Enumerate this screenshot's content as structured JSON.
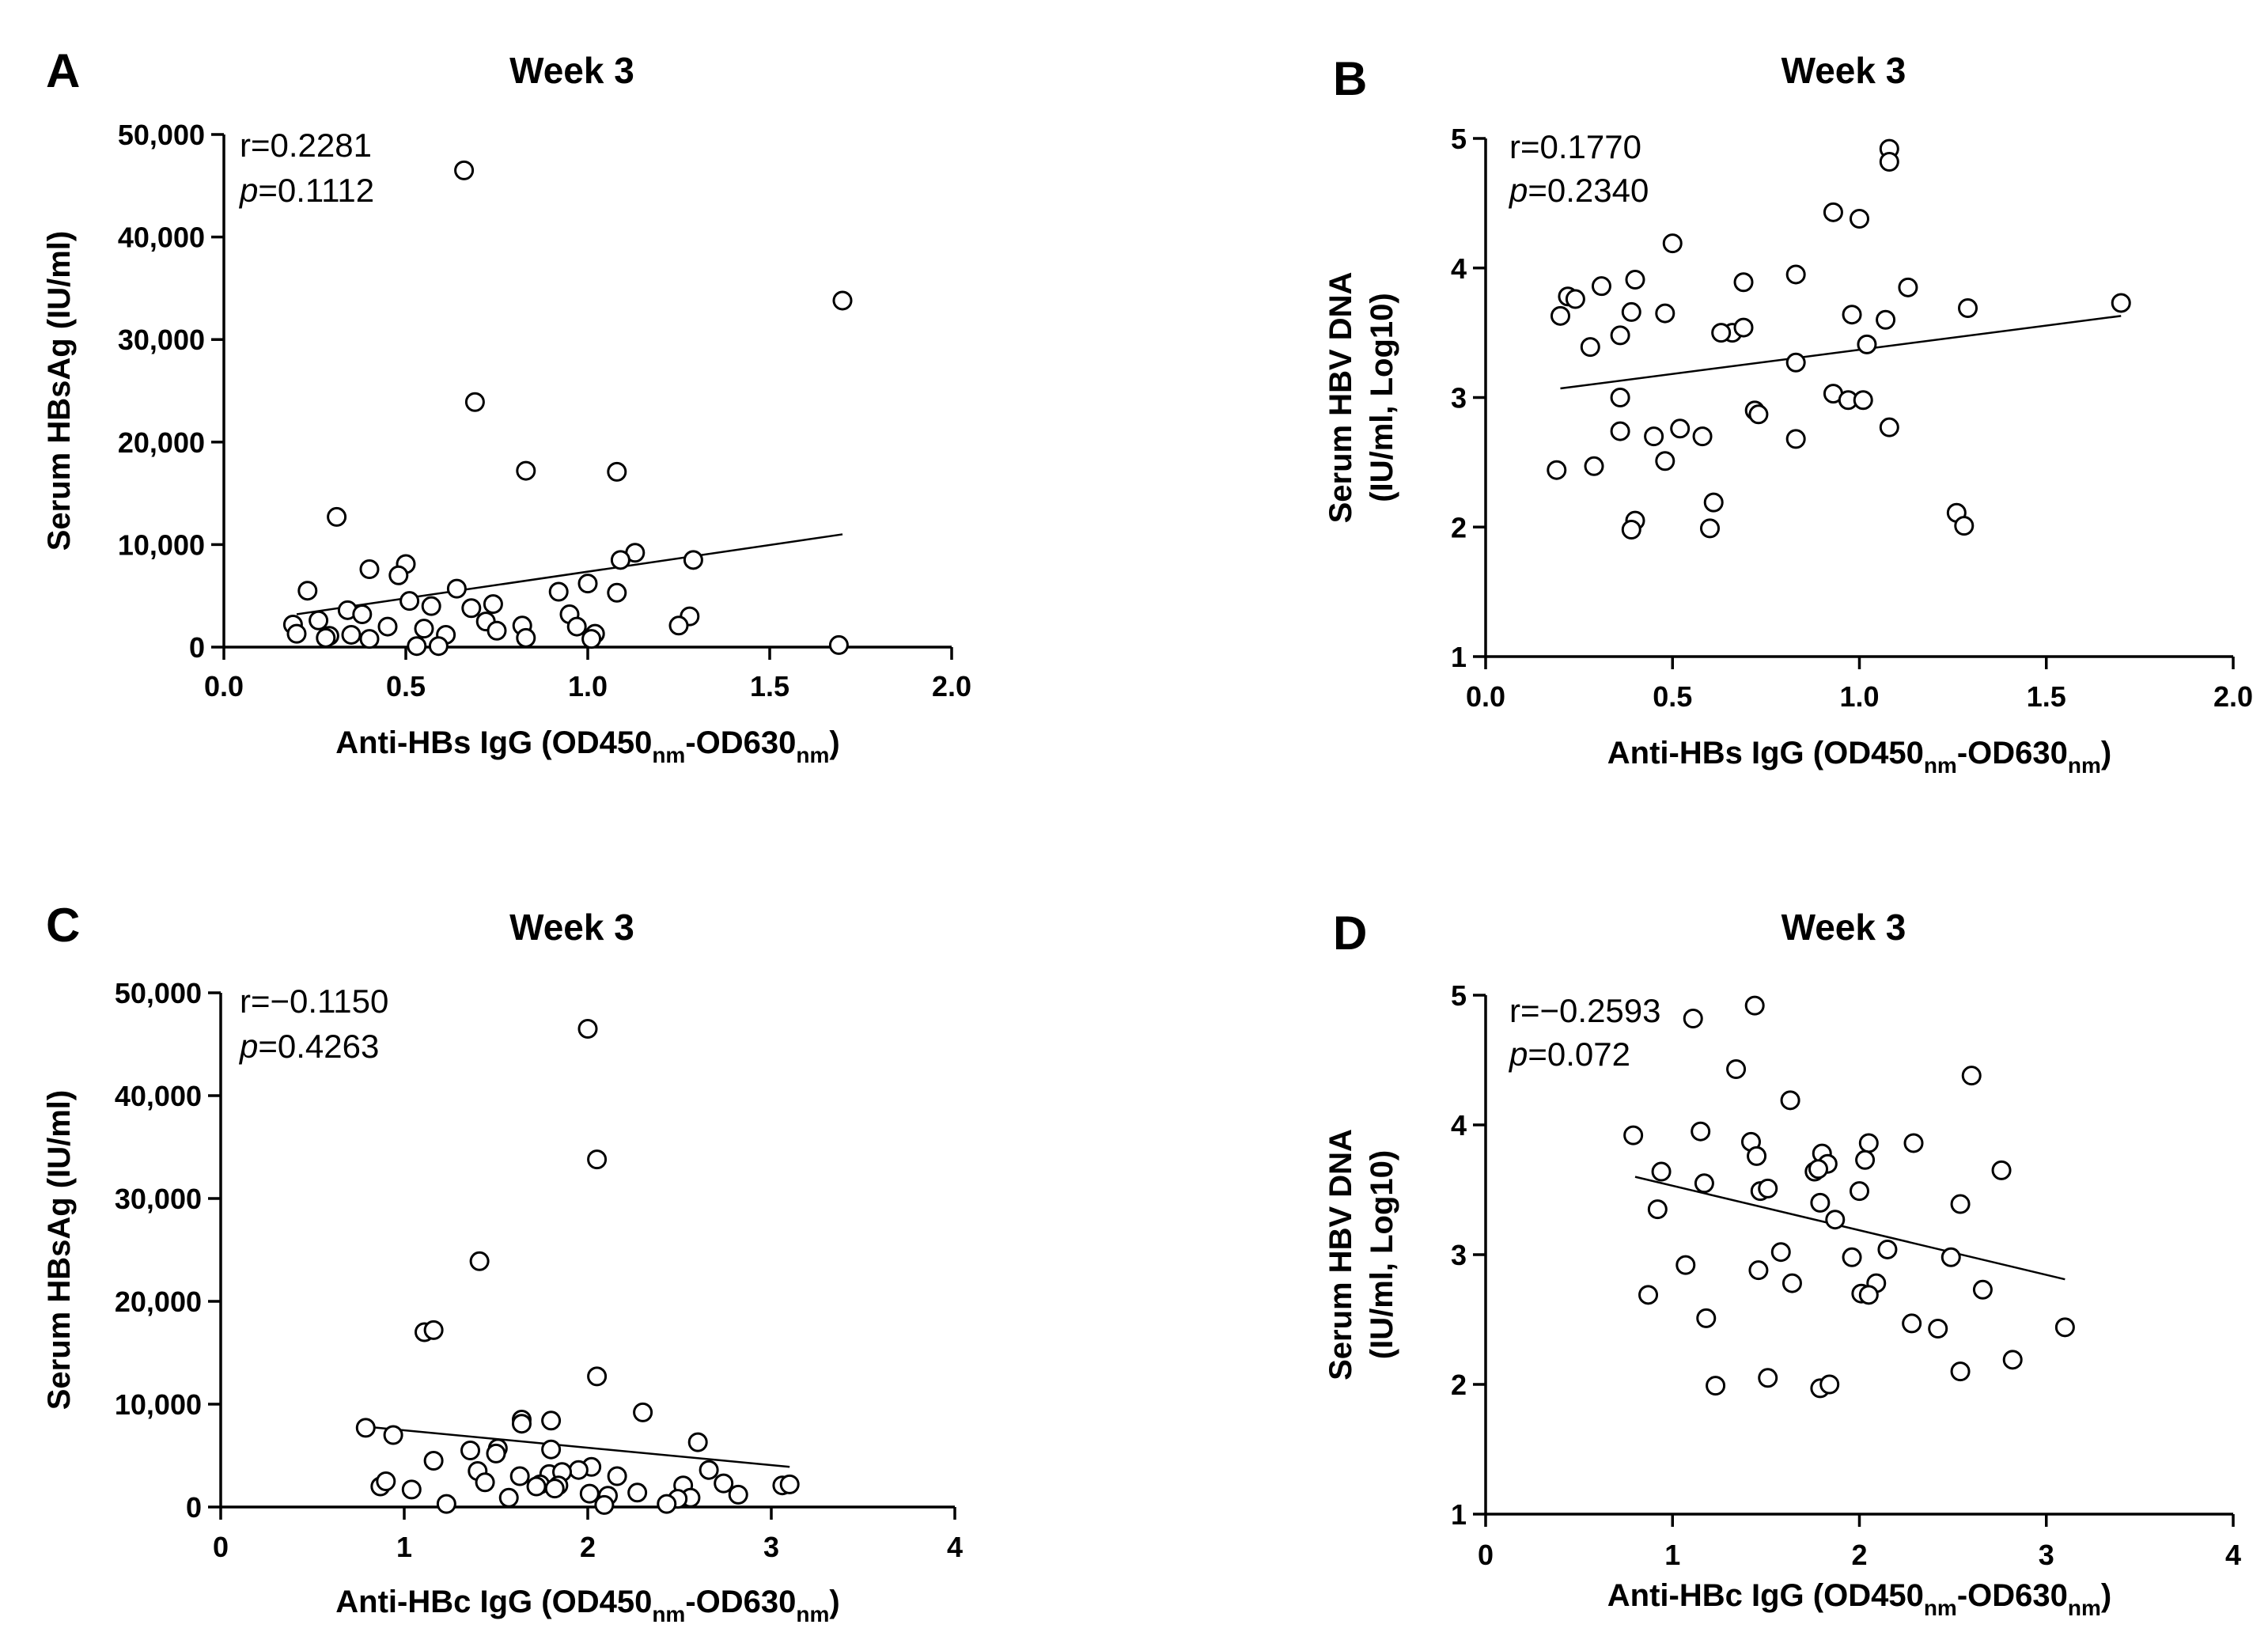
{
  "chart_data": [
    {
      "panel": "A",
      "type": "scatter",
      "title": "Week 3",
      "xlabel": "Anti-HBs IgG (OD450",
      "xlabel_sub1": "nm",
      "xlabel_mid": "-OD630",
      "xlabel_sub2": "nm",
      "xlabel_end": ")",
      "ylabel": [
        "Serum HBsAg (IU/ml)"
      ],
      "xlim": [
        0,
        2
      ],
      "ylim": [
        0,
        50000
      ],
      "xticks": [
        0,
        0.5,
        1,
        1.5,
        2
      ],
      "xtick_labels": [
        "0.0",
        "0.5",
        "1.0",
        "1.5",
        "2.0"
      ],
      "yticks": [
        0,
        10000,
        20000,
        30000,
        40000,
        50000
      ],
      "ytick_labels": [
        "0",
        "10,000",
        "20,000",
        "30,000",
        "40,000",
        "50,000"
      ],
      "stat_r": "r=0.2281",
      "stat_p_letter": "p",
      "stat_p_value": "=0.1112",
      "fit": {
        "x": [
          0.2,
          1.7
        ],
        "y": [
          3200,
          11000
        ]
      },
      "x": [
        0.66,
        1.7,
        0.69,
        0.83,
        1.08,
        0.31,
        1.13,
        1.09,
        1.29,
        0.4,
        0.5,
        0.48,
        0.64,
        1.0,
        0.23,
        0.92,
        0.51,
        0.57,
        0.68,
        0.74,
        0.95,
        1.08,
        1.28,
        0.34,
        0.45,
        0.72,
        1.25,
        0.19,
        0.26,
        0.82,
        0.97,
        0.38,
        0.75,
        0.2,
        0.35,
        0.29,
        0.61,
        0.4,
        0.53,
        0.59,
        1.02,
        1.01,
        1.69,
        0.28,
        0.55,
        0.83
      ],
      "y": [
        46500,
        33800,
        23900,
        17200,
        17100,
        12700,
        9200,
        8500,
        8500,
        7600,
        8100,
        7000,
        5700,
        6200,
        5500,
        5400,
        4500,
        4000,
        3800,
        4200,
        3200,
        5300,
        3000,
        3600,
        2000,
        2500,
        2100,
        2200,
        2600,
        2100,
        2000,
        3200,
        1600,
        1300,
        1200,
        1100,
        1200,
        800,
        100,
        100,
        1300,
        800,
        200,
        900,
        1800,
        900
      ]
    },
    {
      "panel": "B",
      "type": "scatter",
      "title": "Week 3",
      "xlabel": "Anti-HBs IgG (OD450",
      "xlabel_sub1": "nm",
      "xlabel_mid": "-OD630",
      "xlabel_sub2": "nm",
      "xlabel_end": ")",
      "ylabel": [
        "Serum HBV DNA",
        "(IU/ml, Log10)"
      ],
      "xlim": [
        0,
        2
      ],
      "ylim": [
        1,
        5
      ],
      "xticks": [
        0,
        0.5,
        1,
        1.5,
        2
      ],
      "xtick_labels": [
        "0.0",
        "0.5",
        "1.0",
        "1.5",
        "2.0"
      ],
      "yticks": [
        1,
        2,
        3,
        4,
        5
      ],
      "ytick_labels": [
        "1",
        "2",
        "3",
        "4",
        "5"
      ],
      "stat_r": "r=0.1770",
      "stat_p_letter": "p",
      "stat_p_value": "=0.2340",
      "fit": {
        "x": [
          0.2,
          1.7
        ],
        "y": [
          3.07,
          3.63
        ]
      },
      "x": [
        1.08,
        1.08,
        0.93,
        1.0,
        0.5,
        0.83,
        0.22,
        0.24,
        0.31,
        0.4,
        0.69,
        1.13,
        0.2,
        0.39,
        0.48,
        0.98,
        1.07,
        1.29,
        1.7,
        0.36,
        0.28,
        0.66,
        0.69,
        0.63,
        1.02,
        0.83,
        0.36,
        0.93,
        0.97,
        1.01,
        0.72,
        0.73,
        0.36,
        0.52,
        0.45,
        0.58,
        1.08,
        0.83,
        0.29,
        0.48,
        0.19,
        0.61,
        0.4,
        0.39,
        0.6,
        1.26,
        1.28
      ],
      "y": [
        4.92,
        4.82,
        4.43,
        4.38,
        4.19,
        3.95,
        3.78,
        3.76,
        3.86,
        3.91,
        3.89,
        3.85,
        3.63,
        3.66,
        3.65,
        3.64,
        3.6,
        3.69,
        3.73,
        3.48,
        3.39,
        3.5,
        3.54,
        3.5,
        3.41,
        3.27,
        3.0,
        3.03,
        2.98,
        2.98,
        2.9,
        2.87,
        2.74,
        2.76,
        2.7,
        2.7,
        2.77,
        2.68,
        2.47,
        2.51,
        2.44,
        2.19,
        2.05,
        1.98,
        1.99,
        2.11,
        2.01
      ]
    },
    {
      "panel": "C",
      "type": "scatter",
      "title": "Week 3",
      "xlabel": "Anti-HBc IgG (OD450",
      "xlabel_sub1": "nm",
      "xlabel_mid": "-OD630",
      "xlabel_sub2": "nm",
      "xlabel_end": ")",
      "ylabel": [
        "Serum HBsAg (IU/ml)"
      ],
      "xlim": [
        0,
        4
      ],
      "ylim": [
        0,
        50000
      ],
      "xticks": [
        0,
        1,
        2,
        3,
        4
      ],
      "xtick_labels": [
        "0",
        "1",
        "2",
        "3",
        "4"
      ],
      "yticks": [
        0,
        10000,
        20000,
        30000,
        40000,
        50000
      ],
      "ytick_labels": [
        "0",
        "10,000",
        "20,000",
        "30,000",
        "40,000",
        "50,000"
      ],
      "stat_r": "r=−0.1150",
      "stat_p_letter": "p",
      "stat_p_value": "=0.4263",
      "fit": {
        "x": [
          0.8,
          3.1
        ],
        "y": [
          7800,
          3900
        ]
      },
      "x": [
        2.0,
        2.05,
        1.41,
        1.11,
        1.16,
        2.05,
        2.3,
        1.64,
        1.8,
        0.79,
        0.94,
        1.64,
        2.6,
        1.51,
        1.36,
        1.8,
        1.16,
        1.5,
        2.02,
        1.95,
        2.16,
        1.63,
        1.79,
        1.86,
        2.66,
        1.4,
        1.44,
        1.74,
        2.74,
        2.52,
        1.72,
        1.84,
        0.87,
        0.9,
        1.04,
        1.82,
        2.01,
        2.11,
        1.57,
        2.82,
        3.06,
        3.1,
        2.56,
        2.27,
        2.49,
        2.43,
        1.23,
        2.09
      ],
      "y": [
        46500,
        33800,
        23900,
        17000,
        17200,
        12700,
        9200,
        8500,
        8400,
        7700,
        7000,
        8100,
        6300,
        5700,
        5500,
        5600,
        4500,
        5200,
        3900,
        3600,
        3000,
        3000,
        3200,
        3400,
        3600,
        3500,
        2400,
        2200,
        2300,
        2100,
        2000,
        2100,
        2000,
        2500,
        1700,
        1800,
        1300,
        1100,
        900,
        1200,
        2100,
        2200,
        900,
        1400,
        800,
        300,
        300,
        200
      ]
    },
    {
      "panel": "D",
      "type": "scatter",
      "title": "Week 3",
      "xlabel": "Anti-HBc IgG (OD450",
      "xlabel_sub1": "nm",
      "xlabel_mid": "-OD630",
      "xlabel_sub2": "nm",
      "xlabel_end": ")",
      "ylabel": [
        "Serum HBV DNA",
        "(IU/ml, Log10)"
      ],
      "xlim": [
        0,
        4
      ],
      "ylim": [
        1,
        5
      ],
      "xticks": [
        0,
        1,
        2,
        3,
        4
      ],
      "xtick_labels": [
        "0",
        "1",
        "2",
        "3",
        "4"
      ],
      "yticks": [
        1,
        2,
        3,
        4,
        5
      ],
      "ytick_labels": [
        "1",
        "2",
        "3",
        "4",
        "5"
      ],
      "stat_r": "r=−0.2593",
      "stat_p_letter": "p",
      "stat_p_value": "=0.072",
      "fit": {
        "x": [
          0.8,
          3.1
        ],
        "y": [
          3.6,
          2.81
        ]
      },
      "x": [
        1.44,
        1.11,
        1.34,
        2.6,
        1.63,
        0.79,
        1.15,
        1.42,
        2.05,
        2.29,
        0.94,
        1.76,
        1.8,
        1.83,
        1.78,
        2.76,
        1.45,
        2.03,
        1.17,
        1.47,
        1.51,
        2.0,
        1.79,
        1.87,
        2.54,
        0.92,
        1.07,
        1.58,
        1.96,
        2.15,
        2.49,
        2.66,
        1.46,
        1.64,
        2.09,
        2.01,
        2.05,
        0.87,
        1.18,
        2.28,
        2.42,
        3.1,
        2.82,
        2.54,
        1.51,
        1.23,
        1.79,
        1.84
      ],
      "y": [
        4.92,
        4.82,
        4.43,
        4.38,
        4.19,
        3.92,
        3.95,
        3.87,
        3.86,
        3.86,
        3.64,
        3.64,
        3.78,
        3.7,
        3.66,
        3.65,
        3.76,
        3.73,
        3.55,
        3.49,
        3.51,
        3.49,
        3.4,
        3.27,
        3.39,
        3.35,
        2.92,
        3.02,
        2.98,
        3.04,
        2.98,
        2.73,
        2.88,
        2.78,
        2.78,
        2.7,
        2.69,
        2.69,
        2.51,
        2.47,
        2.43,
        2.44,
        2.19,
        2.1,
        2.05,
        1.99,
        1.97,
        2.0
      ]
    }
  ]
}
